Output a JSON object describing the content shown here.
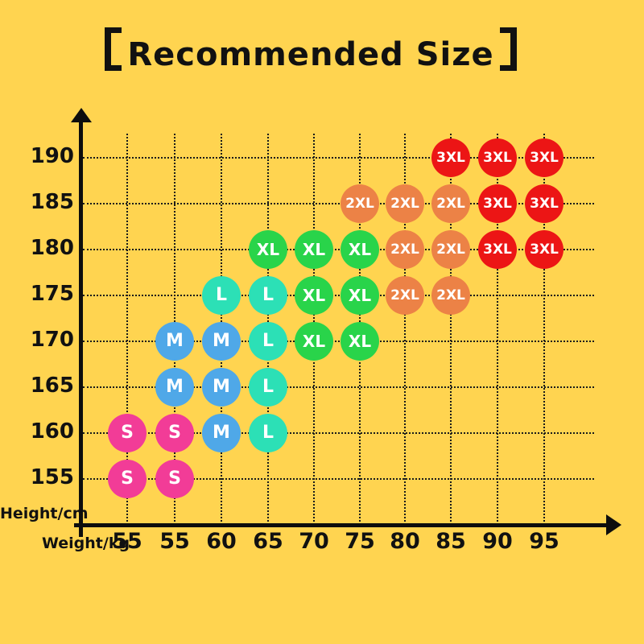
{
  "title": {
    "full": "【Recommended Size】",
    "text": "Recommended Size",
    "left_bracket": "【",
    "right_bracket": "】"
  },
  "axes": {
    "y_label": "Height/cm",
    "x_label": "Weight/kg"
  },
  "colors": {
    "background": "#FFD450",
    "axis": "#0D0D0D",
    "grid": "#1B1B1B",
    "dot_text": "#FFFFFF",
    "S": "#F23C97",
    "M": "#4FA8E8",
    "L": "#2CE0B6",
    "XL": "#29D44A",
    "2XL": "#EC8246",
    "3XL": "#EC1515"
  },
  "chart_data": {
    "type": "scatter",
    "title": "【Recommended Size】",
    "xlabel": "Weight/kg",
    "ylabel": "Height/cm",
    "x_tick_labels": [
      "55",
      "55",
      "60",
      "65",
      "70",
      "75",
      "80",
      "85",
      "90",
      "95"
    ],
    "y_tick_labels": [
      "190",
      "185",
      "180",
      "175",
      "170",
      "165",
      "160",
      "155"
    ],
    "grid": "dotted",
    "legend_position": "none",
    "points_format": "[x_column_index_1_based, height_cm]",
    "series": [
      {
        "name": "S",
        "color": "#F23C97",
        "points": [
          [
            1,
            160
          ],
          [
            2,
            160
          ],
          [
            1,
            155
          ],
          [
            2,
            155
          ]
        ]
      },
      {
        "name": "M",
        "color": "#4FA8E8",
        "points": [
          [
            2,
            170
          ],
          [
            3,
            170
          ],
          [
            2,
            165
          ],
          [
            3,
            165
          ],
          [
            3,
            160
          ]
        ]
      },
      {
        "name": "L",
        "color": "#2CE0B6",
        "points": [
          [
            3,
            175
          ],
          [
            4,
            175
          ],
          [
            4,
            170
          ],
          [
            4,
            165
          ],
          [
            4,
            160
          ]
        ]
      },
      {
        "name": "XL",
        "color": "#29D44A",
        "points": [
          [
            4,
            180
          ],
          [
            5,
            180
          ],
          [
            6,
            180
          ],
          [
            5,
            175
          ],
          [
            6,
            175
          ],
          [
            5,
            170
          ],
          [
            6,
            170
          ]
        ]
      },
      {
        "name": "2XL",
        "color": "#EC8246",
        "points": [
          [
            6,
            185
          ],
          [
            7,
            185
          ],
          [
            8,
            185
          ],
          [
            7,
            180
          ],
          [
            8,
            180
          ],
          [
            7,
            175
          ],
          [
            8,
            175
          ]
        ]
      },
      {
        "name": "3XL",
        "color": "#EC1515",
        "points": [
          [
            8,
            190
          ],
          [
            9,
            190
          ],
          [
            10,
            190
          ],
          [
            9,
            185
          ],
          [
            10,
            185
          ],
          [
            9,
            180
          ],
          [
            10,
            180
          ]
        ]
      }
    ]
  }
}
